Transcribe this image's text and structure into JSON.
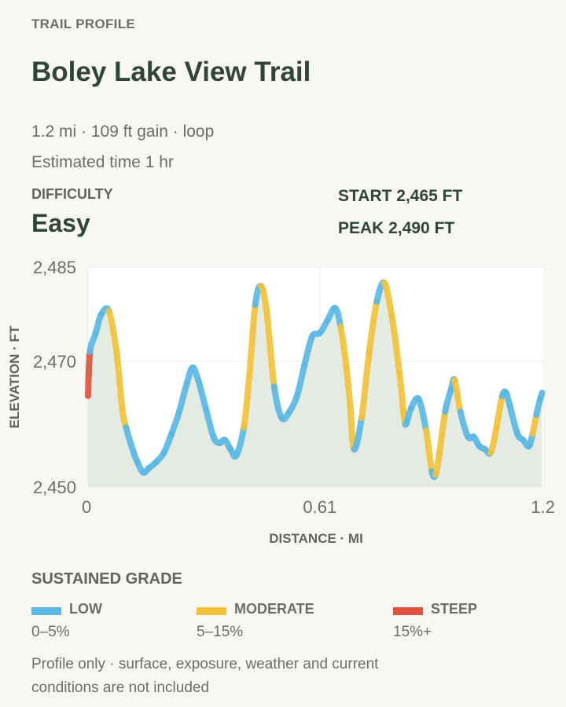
{
  "header": {
    "eyebrow": "TRAIL PROFILE",
    "title": "Boley Lake View Trail",
    "meta_line1": "1.2 mi · 109 ft gain · loop",
    "meta_line2": "Estimated time 1 hr"
  },
  "difficulty": {
    "label": "DIFFICULTY",
    "value": "Easy"
  },
  "stats": {
    "start": "START 2,465 FT",
    "peak": "PEAK 2,490 FT"
  },
  "legend": {
    "title": "SUSTAINED GRADE",
    "items": [
      {
        "name": "LOW",
        "range": "0–5%",
        "color": "#5bb9e4"
      },
      {
        "name": "MODERATE",
        "range": "5–15%",
        "color": "#f2c23a"
      },
      {
        "name": "STEEP",
        "range": "15%+",
        "color": "#e0533e"
      }
    ]
  },
  "footnote": "Profile only · surface, exposure, weather and current conditions are not included",
  "chart_data": {
    "type": "line",
    "title": "",
    "xlabel": "DISTANCE · MI",
    "ylabel": "ELEVATION · FT",
    "xlim": [
      0,
      1.2
    ],
    "ylim": [
      2450,
      2485
    ],
    "xticks": [
      {
        "value": 0,
        "label": "0"
      },
      {
        "value": 0.61,
        "label": "0.61"
      },
      {
        "value": 1.2,
        "label": "1.2"
      }
    ],
    "yticks": [
      {
        "value": 2450,
        "label": "2,450"
      },
      {
        "value": 2470,
        "label": "2,470"
      },
      {
        "value": 2485,
        "label": "2,485"
      }
    ],
    "grid": true,
    "area_fill": true,
    "colors": {
      "low": "#5bb9e4",
      "moderate": "#f2c23a",
      "steep": "#e0533e",
      "fill": "#e3ebe2"
    },
    "series": [
      {
        "x": [
          0,
          0.005,
          0.02,
          0.035,
          0.055,
          0.075,
          0.09,
          0.1,
          0.12,
          0.13,
          0.145,
          0.16,
          0.18,
          0.2,
          0.22,
          0.24,
          0.26,
          0.275,
          0.29,
          0.31,
          0.33,
          0.345,
          0.36,
          0.375,
          0.39,
          0.41,
          0.425,
          0.44,
          0.455,
          0.47,
          0.49,
          0.51,
          0.53,
          0.55,
          0.57,
          0.59,
          0.61,
          0.63,
          0.65,
          0.665,
          0.68,
          0.69,
          0.7,
          0.72,
          0.74,
          0.76,
          0.78,
          0.8,
          0.82,
          0.83,
          0.835,
          0.84,
          0.85,
          0.87,
          0.89,
          0.905,
          0.915,
          0.925,
          0.94,
          0.955,
          0.965,
          0.98,
          1.0,
          1.015,
          1.03,
          1.045,
          1.06,
          1.075,
          1.09,
          1.1,
          1.11,
          1.13,
          1.145,
          1.16,
          1.17,
          1.18,
          1.19,
          1.195
        ],
        "y": [
          2464.5,
          2471.5,
          2474.5,
          2477.5,
          2478.0,
          2471.5,
          2462.5,
          2459.5,
          2455.5,
          2454.0,
          2452.3,
          2453.0,
          2454.0,
          2455.5,
          2458.5,
          2462.0,
          2466.5,
          2469.0,
          2467.0,
          2462.5,
          2458.0,
          2457.0,
          2457.5,
          2456.0,
          2455.0,
          2459.5,
          2468.0,
          2479.0,
          2482.0,
          2478.0,
          2466.0,
          2461.0,
          2462.0,
          2464.5,
          2469.5,
          2474.0,
          2474.5,
          2476.5,
          2478.5,
          2475.5,
          2469.0,
          2463.0,
          2456.0,
          2461.0,
          2471.5,
          2479.5,
          2482.5,
          2477.0,
          2468.0,
          2462.0,
          2460.0,
          2460.5,
          2462.5,
          2464.0,
          2459.0,
          2452.5,
          2452.0,
          2455.5,
          2462.0,
          2465.5,
          2467.0,
          2462.0,
          2458.0,
          2458.0,
          2456.5,
          2456.0,
          2455.5,
          2459.5,
          2464.5,
          2465.0,
          2463.0,
          2458.5,
          2457.5,
          2456.5,
          2458.5,
          2461.5,
          2464.0,
          2465.0
        ]
      }
    ]
  }
}
